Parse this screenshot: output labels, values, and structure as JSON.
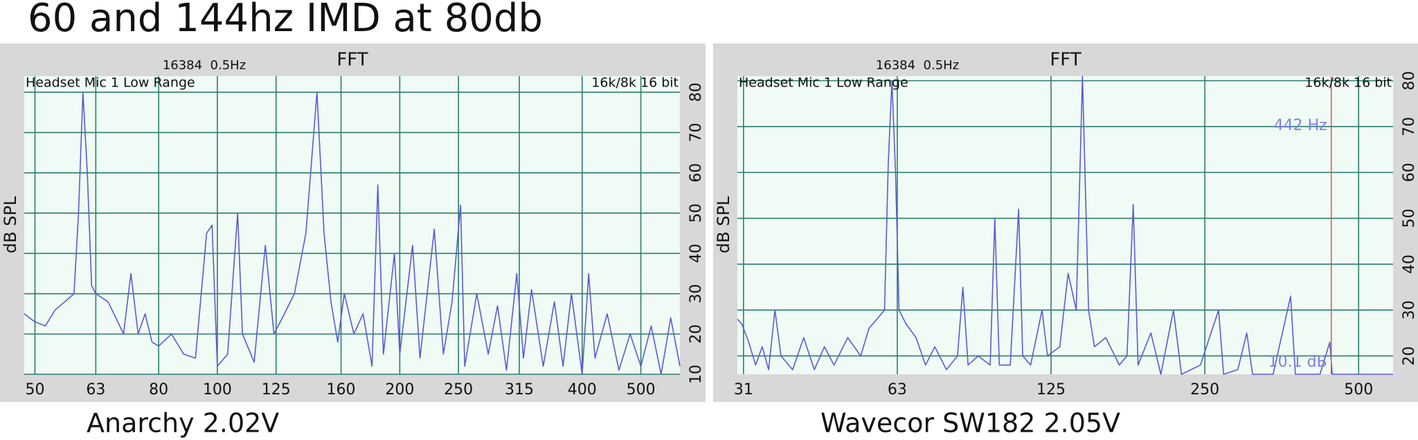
{
  "title": "60 and 144hz IMD at 80db",
  "chart_data": [
    {
      "type": "line",
      "title": "FFT",
      "subtitle": "16384  0.5Hz",
      "note_left": "Headset Mic 1 Low Range",
      "note_right": "16k/8k 16 bit",
      "ylabel": "dB SPL",
      "caption": "Anarchy 2.02V",
      "xscale": "log",
      "grid": true,
      "color": "#5a5ad0",
      "xlim": [
        48,
        580
      ],
      "xticks": [
        50,
        63,
        80,
        100,
        125,
        160,
        200,
        250,
        315,
        400,
        500
      ],
      "ylim": [
        10,
        84
      ],
      "yticks": [
        10,
        20,
        30,
        40,
        50,
        60,
        70,
        80
      ],
      "x": [
        48,
        50,
        52,
        54,
        56,
        58,
        59,
        60,
        61,
        62,
        63,
        66,
        68,
        70,
        72,
        74,
        76,
        78,
        80,
        84,
        88,
        92,
        96,
        98,
        100,
        104,
        108,
        110,
        115,
        120,
        124,
        128,
        134,
        140,
        146,
        150,
        154,
        158,
        162,
        168,
        174,
        180,
        184,
        188,
        196,
        200,
        210,
        216,
        228,
        236,
        244,
        252,
        256,
        268,
        280,
        290,
        300,
        312,
        320,
        330,
        345,
        360,
        372,
        384,
        400,
        410,
        420,
        440,
        460,
        480,
        500,
        520,
        540,
        560,
        580
      ],
      "values": [
        25,
        23,
        22,
        26,
        28,
        30,
        50,
        80,
        60,
        32,
        30,
        28,
        24,
        20,
        35,
        20,
        25,
        18,
        17,
        20,
        15,
        14,
        45,
        47,
        12,
        15,
        50,
        20,
        13,
        42,
        20,
        24,
        30,
        45,
        80,
        45,
        28,
        18,
        30,
        20,
        25,
        12,
        57,
        15,
        40,
        15,
        42,
        14,
        46,
        15,
        28,
        52,
        12,
        30,
        15,
        27,
        11,
        35,
        14,
        31,
        12,
        28,
        12,
        30,
        10,
        35,
        14,
        25,
        11,
        20,
        12,
        22,
        10,
        24,
        12
      ]
    },
    {
      "type": "line",
      "title": "FFT",
      "subtitle": "16384  0.5Hz",
      "note_left": "Headset Mic 1 Low Range",
      "note_right": "16k/8k 16 bit",
      "ylabel": "dB SPL",
      "caption": "Wavecor SW182 2.05V",
      "xscale": "log",
      "grid": true,
      "color": "#5a5ad0",
      "xlim": [
        30.4,
        584
      ],
      "xticks": [
        {
          "value": 31.25,
          "label": "31"
        },
        {
          "value": 62.5,
          "label": "63"
        },
        125,
        250,
        500
      ],
      "ylim": [
        16,
        81
      ],
      "yticks": [
        20,
        30,
        40,
        50,
        60,
        70,
        80
      ],
      "cursor": 442,
      "cursor_color": "#e05050",
      "cursor_labels": [
        "442 Hz",
        "10.1 dB"
      ],
      "x": [
        30.4,
        31,
        32,
        33,
        34,
        35,
        36,
        37,
        39,
        41,
        43,
        45,
        47,
        50,
        53,
        55,
        57,
        59,
        60,
        61,
        62,
        63,
        65,
        68,
        71,
        74,
        78,
        82,
        84,
        86,
        90,
        95,
        97,
        99,
        104,
        108,
        110,
        114,
        120,
        123,
        130,
        135,
        140,
        144,
        148,
        152,
        160,
        170,
        176,
        181,
        185,
        196,
        205,
        217,
        225,
        245,
        266,
        272,
        290,
        302,
        310,
        340,
        368,
        376,
        420,
        439,
        444,
        584
      ],
      "values": [
        28,
        27,
        23,
        18,
        22,
        17,
        30,
        20,
        17,
        24,
        17,
        22,
        18,
        24,
        20,
        26,
        28,
        30,
        62,
        80,
        60,
        30,
        27,
        24,
        18,
        22,
        17,
        20,
        35,
        18,
        20,
        18,
        50,
        18,
        18,
        52,
        20,
        18,
        30,
        20,
        22,
        38,
        30,
        81,
        30,
        22,
        24,
        18,
        20,
        53,
        18,
        25,
        16,
        30,
        16,
        18,
        30,
        16,
        17,
        25,
        16,
        16,
        33,
        16,
        16,
        23,
        16,
        16
      ]
    }
  ]
}
